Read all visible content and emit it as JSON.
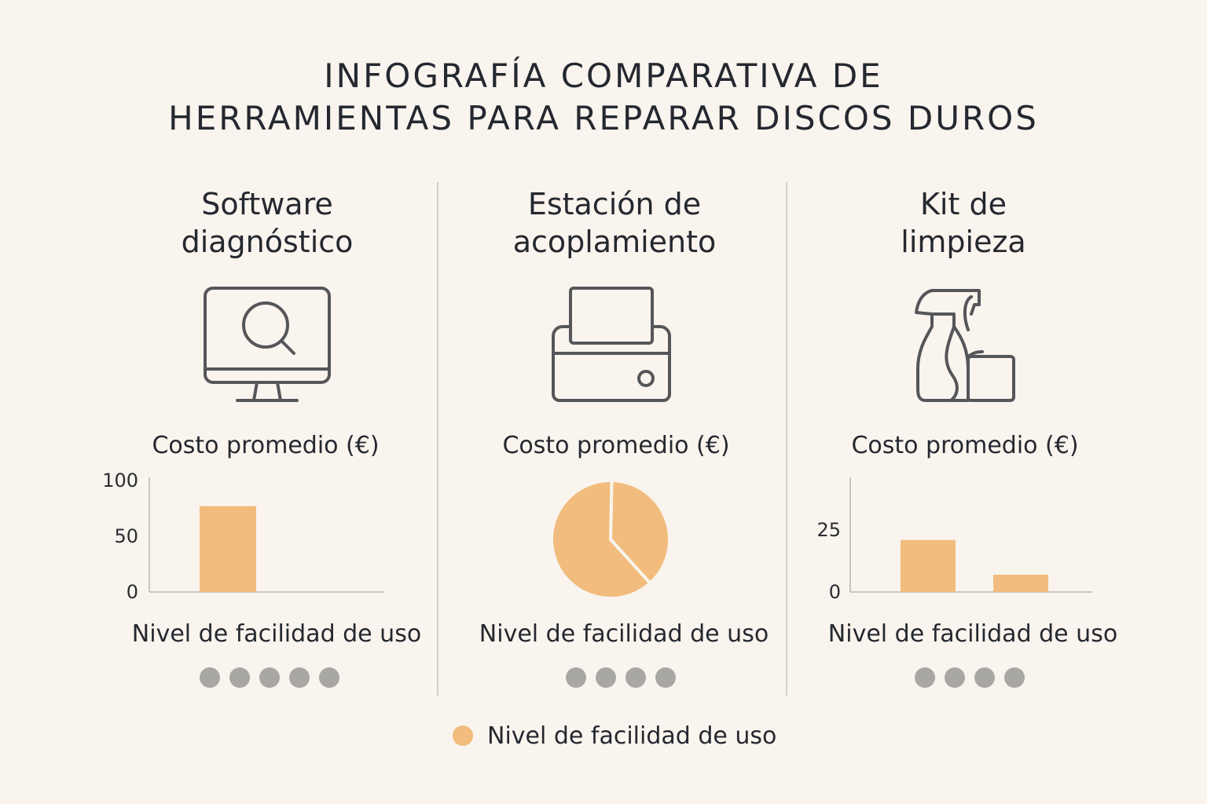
{
  "title": {
    "line1": "INFOGRAFÍA COMPARATIVA DE",
    "line2": "HERRAMIENTAS PARA REPARAR DISCOS DUROS"
  },
  "colors": {
    "accent": "#f1bc7d",
    "dot": "#a9a7a3",
    "text": "#252830",
    "icon_stroke": "#55565a",
    "axis": "#c9c6c0",
    "background": "#f9f4ed"
  },
  "columns": [
    {
      "title_line1": "Software",
      "title_line2": "diagnóstico",
      "icon": "monitor-search-icon",
      "cost_label": "Costo promedio (€)",
      "ease_label": "Nivel de facilidad de uso",
      "ease_dots": 5
    },
    {
      "title_line1": "Estación de",
      "title_line2": "acoplamiento",
      "icon": "docking-station-icon",
      "cost_label": "Costo promedio (€)",
      "ease_label": "Nivel de facilidad de uso",
      "ease_dots": 4
    },
    {
      "title_line1": "Kit de",
      "title_line2": "limpieza",
      "icon": "spray-bottle-icon",
      "cost_label": "Costo promedio (€)",
      "ease_label": "Nivel de facilidad de uso",
      "ease_dots": 4
    }
  ],
  "chart_data": [
    {
      "type": "bar",
      "title": "Costo promedio (€)",
      "categories": [
        "",
        ""
      ],
      "values": [
        77,
        0
      ],
      "ylim": [
        0,
        100
      ],
      "yticks": [
        0,
        50,
        100
      ],
      "ytick_labels": [
        "0",
        "50",
        "100"
      ],
      "grid": false
    },
    {
      "type": "pie",
      "title": "Costo promedio (€)",
      "labels": [
        "",
        ""
      ],
      "values": [
        38,
        62
      ]
    },
    {
      "type": "bar",
      "title": "Costo promedio (€)",
      "categories": [
        "",
        ""
      ],
      "values": [
        21,
        7
      ],
      "ylim": [
        0,
        45
      ],
      "yticks": [
        0,
        25
      ],
      "ytick_labels": [
        "0",
        "25"
      ],
      "grid": false
    }
  ],
  "legend": {
    "label": "Nivel de facilidad de uso",
    "color": "#f1bc7d"
  }
}
